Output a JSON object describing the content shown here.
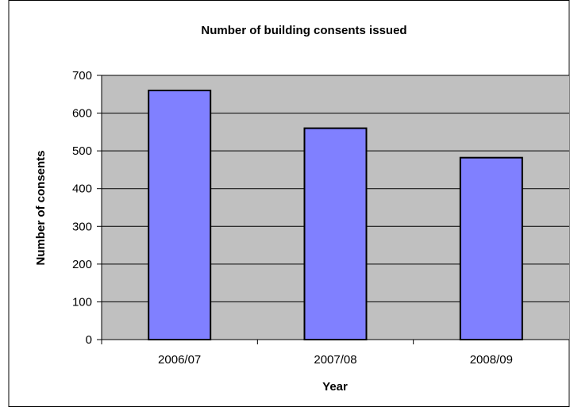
{
  "chart_data": {
    "type": "bar",
    "title": "Number of building consents issued",
    "xlabel": "Year",
    "ylabel": "Number of consents",
    "categories": [
      "2006/07",
      "2007/08",
      "2008/09"
    ],
    "values": [
      660,
      560,
      482
    ],
    "ylim": [
      0,
      700
    ],
    "yticks": [
      0,
      100,
      200,
      300,
      400,
      500,
      600,
      700
    ],
    "grid": true,
    "legend": "none",
    "colors": {
      "bar_fill": "#8080ff",
      "bar_stroke": "#000000",
      "plot_background": "#c0c0c0",
      "gridline": "#000000",
      "frame": "#000000"
    }
  }
}
